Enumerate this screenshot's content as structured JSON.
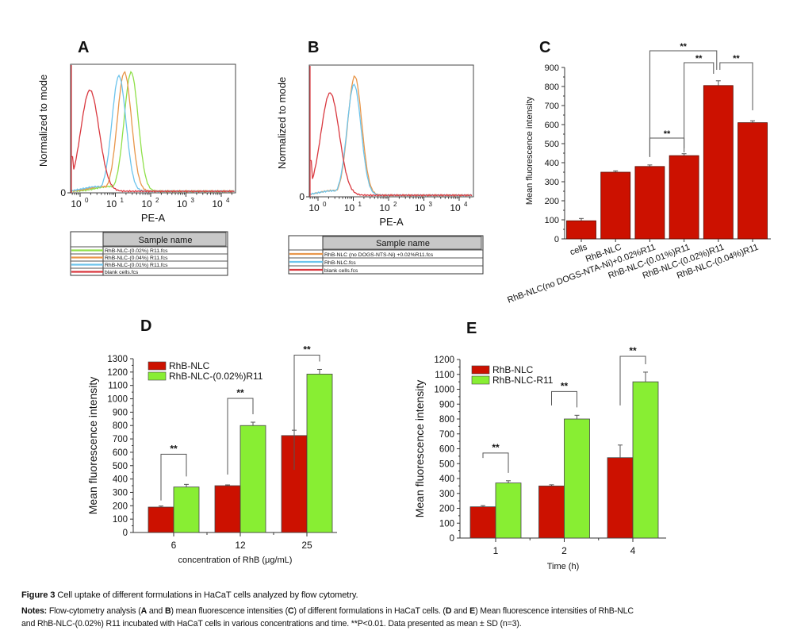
{
  "chart_data": [
    {
      "panel": "A",
      "type": "line",
      "xlabel": "PE-A",
      "ylabel": "Normalized to mode",
      "x_scale": "log",
      "x_ticks": [
        {
          "base": "10",
          "exp": "0"
        },
        {
          "base": "10",
          "exp": "1"
        },
        {
          "base": "10",
          "exp": "2"
        },
        {
          "base": "10",
          "exp": "3"
        },
        {
          "base": "10",
          "exp": "4"
        }
      ],
      "y_ticks": [
        "0"
      ],
      "legend_header": "Sample name",
      "series": [
        {
          "name": "RhB-NLC-(0.02%) R11.fcs",
          "color": "#8fe04a",
          "mode_pe_a": 28,
          "relative_height": 1.0
        },
        {
          "name": "RhB-NLC-(0.04%) R11.fcs",
          "color": "#e8964a",
          "mode_pe_a": 18,
          "relative_height": 1.0
        },
        {
          "name": "RhB-NLC-(0.01%) R11.fcs",
          "color": "#6cc4ec",
          "mode_pe_a": 12.6,
          "relative_height": 0.97
        },
        {
          "name": "blank cells.fcs",
          "color": "#d9383f",
          "mode_pe_a": 1.9,
          "relative_height": 0.85
        }
      ]
    },
    {
      "panel": "B",
      "type": "line",
      "xlabel": "PE-A",
      "ylabel": "Normalized to mode",
      "x_scale": "log",
      "x_ticks": [
        {
          "base": "10",
          "exp": "0"
        },
        {
          "base": "10",
          "exp": "1"
        },
        {
          "base": "10",
          "exp": "2"
        },
        {
          "base": "10",
          "exp": "3"
        },
        {
          "base": "10",
          "exp": "4"
        }
      ],
      "y_ticks": [
        "0"
      ],
      "legend_header": "Sample name",
      "series": [
        {
          "name": "RhB-NLC (no DOGS-NTS-Ni) +0.02%R11.fcs",
          "color": "#e8964a",
          "mode_pe_a": 11,
          "relative_height": 1.0
        },
        {
          "name": "RhB-NLC.fcs",
          "color": "#6cc4ec",
          "mode_pe_a": 10.5,
          "relative_height": 0.93
        },
        {
          "name": "blank cells.fcs",
          "color": "#d9383f",
          "mode_pe_a": 2.2,
          "relative_height": 0.86
        }
      ]
    },
    {
      "panel": "C",
      "type": "bar",
      "ylabel": "Mean fluorescence intensity",
      "ylim": [
        0,
        900
      ],
      "y_ticks": [
        "0",
        "100",
        "200",
        "300",
        "400",
        "500",
        "600",
        "700",
        "800",
        "900"
      ],
      "categories": [
        "cells",
        "RhB-NLC",
        "RhB-NLC(no DOGS-NTA-Ni)+0.02%R11",
        "RhB-NLC-(0.01%)R11",
        "RhB-NLC-(0.02%)R11",
        "RhB-NLC-(0.04%)R11"
      ],
      "values": [
        95,
        350,
        380,
        437,
        805,
        610
      ],
      "errors": [
        12,
        7,
        8,
        10,
        25,
        10
      ],
      "color": "#cc1100",
      "significance": [
        {
          "pair": [
            2,
            3
          ],
          "label": "**"
        },
        {
          "pair": [
            2,
            4
          ],
          "label": "**"
        },
        {
          "pair": [
            3,
            4
          ],
          "label": "**"
        },
        {
          "pair": [
            4,
            5
          ],
          "label": "**"
        }
      ]
    },
    {
      "panel": "D",
      "type": "bar",
      "xlabel": "concentration of RhB (μg/mL)",
      "ylabel": "Mean fluorescence intensity",
      "ylim": [
        0,
        1300
      ],
      "y_ticks": [
        "0",
        "100",
        "200",
        "300",
        "400",
        "500",
        "600",
        "700",
        "800",
        "900",
        "1000",
        "1100",
        "1200",
        "1300"
      ],
      "categories": [
        "6",
        "12",
        "25"
      ],
      "legend_placement": "top-left",
      "series": [
        {
          "name": "RhB-NLC",
          "color": "#cc1100",
          "values": [
            190,
            350,
            725
          ],
          "errors": [
            8,
            6,
            40
          ]
        },
        {
          "name": "RhB-NLC-(0.02%)R11",
          "color": "#88ee33",
          "values": [
            340,
            800,
            1185
          ],
          "errors": [
            20,
            25,
            35
          ]
        }
      ],
      "significance_label": "**"
    },
    {
      "panel": "E",
      "type": "bar",
      "xlabel": "Time (h)",
      "ylabel": "Mean fluorescence intensity",
      "ylim": [
        0,
        1200
      ],
      "y_ticks": [
        "0",
        "100",
        "200",
        "300",
        "400",
        "500",
        "600",
        "700",
        "800",
        "900",
        "1000",
        "1100",
        "1200"
      ],
      "categories": [
        "1",
        "2",
        "4"
      ],
      "legend_placement": "top-left",
      "series": [
        {
          "name": "RhB-NLC",
          "color": "#cc1100",
          "values": [
            210,
            350,
            540
          ],
          "errors": [
            8,
            8,
            85
          ]
        },
        {
          "name": "RhB-NLC-R11",
          "color": "#88ee33",
          "values": [
            370,
            800,
            1050
          ],
          "errors": [
            15,
            25,
            65
          ]
        }
      ],
      "significance_label": "**"
    }
  ],
  "caption": {
    "figure_label": "Figure 3",
    "title": " Cell uptake of different formulations in HaCaT cells analyzed by flow cytometry.",
    "notes_label": "Notes:",
    "notes_line1": {
      "t1": " Flow-cytometry analysis (",
      "A": "A",
      "t2": " and ",
      "B": "B",
      "t3": ") mean fluorescence intensities (",
      "C": "C",
      "t4": ") of different formulations in HaCaT cells. (",
      "D": "D",
      "t5": " and ",
      "E": "E",
      "t6": ") Mean fluorescence intensities of RhB-NLC"
    },
    "notes_line2": "and RhB-NLC-(0.02%) R11 incubated with HaCaT cells in various concentrations and time. **P<0.01. Data presented as mean ± SD (n=3)."
  }
}
